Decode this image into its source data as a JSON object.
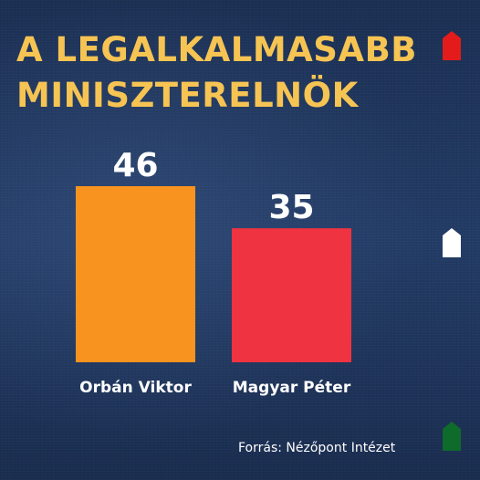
{
  "chart_data": {
    "type": "bar",
    "title_lines": [
      "A LEGALKALMASABB",
      "MINISZTERELNÖK"
    ],
    "categories": [
      "Orbán Viktor",
      "Magyar Péter"
    ],
    "values": [
      46,
      35
    ],
    "colors": [
      "#f7931e",
      "#ef3340"
    ],
    "value_labels": [
      "46",
      "35"
    ],
    "xlabel": "",
    "ylabel": "",
    "ylim": [
      0,
      46
    ],
    "grid": false,
    "legend": "none",
    "source": "Forrás: Nézőpont Intézet"
  },
  "decorations": {
    "flag_colors": [
      "#e41b1b",
      "#ffffff",
      "#0e6b2b"
    ]
  }
}
